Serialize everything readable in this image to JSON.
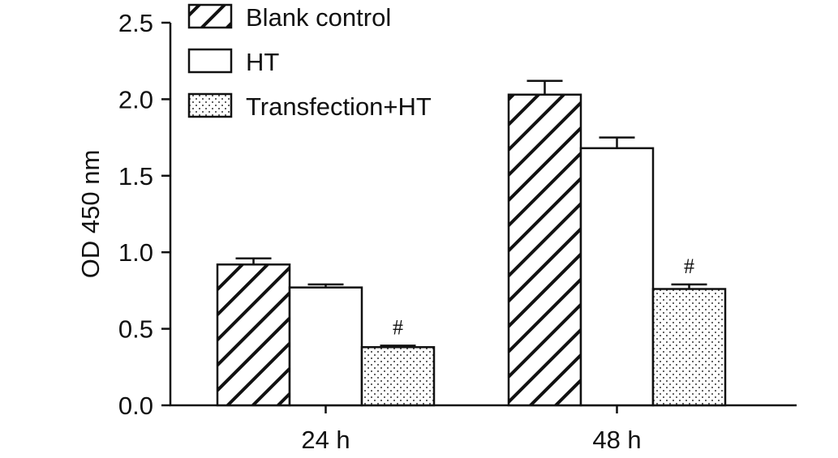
{
  "chart_data": {
    "type": "bar",
    "ylabel": "OD 450 nm",
    "xlabel": "",
    "ylim": [
      0,
      2.5
    ],
    "yticks": [
      "0.0",
      "0.5",
      "1.0",
      "1.5",
      "2.0",
      "2.5"
    ],
    "categories": [
      "24 h",
      "48 h"
    ],
    "series": [
      {
        "name": "Blank control",
        "pattern": "hatch",
        "values": [
          0.92,
          2.03
        ],
        "errors": [
          0.04,
          0.09
        ]
      },
      {
        "name": "HT",
        "pattern": "empty",
        "values": [
          0.77,
          1.68
        ],
        "errors": [
          0.02,
          0.07
        ]
      },
      {
        "name": "Transfection+HT",
        "pattern": "dots",
        "values": [
          0.38,
          0.76
        ],
        "errors": [
          0.01,
          0.03
        ]
      }
    ],
    "annotations": [
      {
        "series": 2,
        "category": 0,
        "text": "#"
      },
      {
        "series": 2,
        "category": 1,
        "text": "#"
      }
    ],
    "legend_position": "top-left",
    "grid": false
  },
  "colors": {
    "ink": "#111111",
    "fill": "#ffffff"
  }
}
